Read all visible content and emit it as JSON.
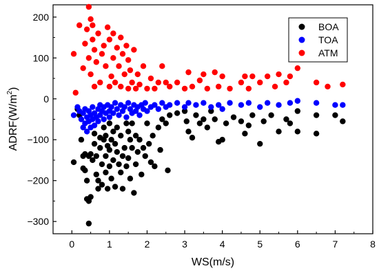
{
  "chart_data": {
    "type": "scatter",
    "xlabel": "WS(m/s)",
    "ylabel": "ADRF(W/m",
    "ylabel_superscript": "2",
    "ylabel_suffix": ")",
    "xlim": [
      -0.5,
      8
    ],
    "ylim": [
      -330,
      230
    ],
    "xticks": [
      0,
      1,
      2,
      3,
      4,
      5,
      6,
      7,
      8
    ],
    "yticks": [
      -300,
      -200,
      -100,
      0,
      100,
      200
    ],
    "grid": false,
    "legend_position": "top-right",
    "series": [
      {
        "name": "BOA",
        "color": "#000000",
        "points": [
          [
            0.05,
            -155
          ],
          [
            0.15,
            -25
          ],
          [
            0.2,
            -40
          ],
          [
            0.25,
            -100
          ],
          [
            0.3,
            -140
          ],
          [
            0.3,
            -170
          ],
          [
            0.35,
            -135
          ],
          [
            0.35,
            -175
          ],
          [
            0.4,
            -245
          ],
          [
            0.4,
            -200
          ],
          [
            0.45,
            -140
          ],
          [
            0.45,
            -250
          ],
          [
            0.45,
            -305
          ],
          [
            0.5,
            -240
          ],
          [
            0.5,
            -135
          ],
          [
            0.55,
            -150
          ],
          [
            0.6,
            -85
          ],
          [
            0.6,
            -110
          ],
          [
            0.65,
            -140
          ],
          [
            0.65,
            -185
          ],
          [
            0.7,
            -200
          ],
          [
            0.7,
            -220
          ],
          [
            0.75,
            -95
          ],
          [
            0.75,
            -120
          ],
          [
            0.8,
            -160
          ],
          [
            0.8,
            -210
          ],
          [
            0.85,
            -70
          ],
          [
            0.85,
            -100
          ],
          [
            0.9,
            -90
          ],
          [
            0.9,
            -140
          ],
          [
            0.9,
            -180
          ],
          [
            0.95,
            -115
          ],
          [
            0.95,
            -220
          ],
          [
            1.0,
            -60
          ],
          [
            1.0,
            -125
          ],
          [
            1.0,
            -165
          ],
          [
            1.05,
            -100
          ],
          [
            1.05,
            -195
          ],
          [
            1.1,
            -80
          ],
          [
            1.1,
            -150
          ],
          [
            1.15,
            -110
          ],
          [
            1.15,
            -215
          ],
          [
            1.2,
            -70
          ],
          [
            1.2,
            -130
          ],
          [
            1.25,
            -160
          ],
          [
            1.3,
            -90
          ],
          [
            1.3,
            -180
          ],
          [
            1.35,
            -140
          ],
          [
            1.35,
            -220
          ],
          [
            1.4,
            -120
          ],
          [
            1.45,
            -60
          ],
          [
            1.45,
            -165
          ],
          [
            1.5,
            -80
          ],
          [
            1.5,
            -145
          ],
          [
            1.55,
            -100
          ],
          [
            1.55,
            -195
          ],
          [
            1.6,
            -60
          ],
          [
            1.6,
            -120
          ],
          [
            1.65,
            -230
          ],
          [
            1.7,
            -90
          ],
          [
            1.7,
            -160
          ],
          [
            1.75,
            -130
          ],
          [
            1.8,
            -100
          ],
          [
            1.85,
            -185
          ],
          [
            1.9,
            -120
          ],
          [
            1.95,
            -140
          ],
          [
            2.0,
            -60
          ],
          [
            2.05,
            -110
          ],
          [
            2.1,
            -155
          ],
          [
            2.15,
            -90
          ],
          [
            2.2,
            -165
          ],
          [
            2.3,
            -70
          ],
          [
            2.35,
            -125
          ],
          [
            2.4,
            -50
          ],
          [
            2.5,
            -60
          ],
          [
            2.55,
            -175
          ],
          [
            2.6,
            -40
          ],
          [
            2.8,
            -35
          ],
          [
            3.0,
            -30
          ],
          [
            3.05,
            -55
          ],
          [
            3.1,
            -80
          ],
          [
            3.2,
            -95
          ],
          [
            3.3,
            -40
          ],
          [
            3.4,
            -60
          ],
          [
            3.5,
            -50
          ],
          [
            3.6,
            -70
          ],
          [
            3.7,
            -30
          ],
          [
            3.8,
            -50
          ],
          [
            3.9,
            -105
          ],
          [
            4.0,
            -100
          ],
          [
            4.1,
            -60
          ],
          [
            4.3,
            -45
          ],
          [
            4.5,
            -55
          ],
          [
            4.6,
            -85
          ],
          [
            4.7,
            -65
          ],
          [
            4.8,
            -40
          ],
          [
            5.0,
            -110
          ],
          [
            5.1,
            -55
          ],
          [
            5.3,
            -40
          ],
          [
            5.5,
            -80
          ],
          [
            5.7,
            -50
          ],
          [
            5.8,
            -60
          ],
          [
            6.0,
            -30
          ],
          [
            6.0,
            -80
          ],
          [
            6.5,
            -40
          ],
          [
            6.5,
            -85
          ],
          [
            7.0,
            -40
          ],
          [
            7.2,
            -55
          ]
        ]
      },
      {
        "name": "TOA",
        "color": "#0000ff",
        "points": [
          [
            0.05,
            -40
          ],
          [
            0.15,
            -20
          ],
          [
            0.2,
            -30
          ],
          [
            0.25,
            -50
          ],
          [
            0.3,
            -35
          ],
          [
            0.3,
            -70
          ],
          [
            0.35,
            -25
          ],
          [
            0.35,
            -60
          ],
          [
            0.4,
            -45
          ],
          [
            0.4,
            -80
          ],
          [
            0.45,
            -30
          ],
          [
            0.45,
            -55
          ],
          [
            0.5,
            -40
          ],
          [
            0.5,
            -70
          ],
          [
            0.55,
            -20
          ],
          [
            0.55,
            -50
          ],
          [
            0.6,
            -35
          ],
          [
            0.6,
            -65
          ],
          [
            0.65,
            -45
          ],
          [
            0.7,
            -25
          ],
          [
            0.7,
            -55
          ],
          [
            0.75,
            -15
          ],
          [
            0.75,
            -40
          ],
          [
            0.8,
            -30
          ],
          [
            0.85,
            -20
          ],
          [
            0.85,
            -50
          ],
          [
            0.9,
            -35
          ],
          [
            0.95,
            -15
          ],
          [
            1.0,
            -30
          ],
          [
            1.0,
            -45
          ],
          [
            1.05,
            -20
          ],
          [
            1.1,
            -35
          ],
          [
            1.15,
            -10
          ],
          [
            1.2,
            -25
          ],
          [
            1.25,
            -40
          ],
          [
            1.3,
            -15
          ],
          [
            1.35,
            -30
          ],
          [
            1.4,
            -20
          ],
          [
            1.45,
            -45
          ],
          [
            1.5,
            -10
          ],
          [
            1.55,
            -25
          ],
          [
            1.6,
            -35
          ],
          [
            1.65,
            -15
          ],
          [
            1.7,
            -30
          ],
          [
            1.75,
            -20
          ],
          [
            1.8,
            -40
          ],
          [
            1.85,
            -15
          ],
          [
            1.9,
            -25
          ],
          [
            1.95,
            -10
          ],
          [
            2.0,
            -30
          ],
          [
            2.1,
            -20
          ],
          [
            2.2,
            -15
          ],
          [
            2.3,
            -25
          ],
          [
            2.4,
            -10
          ],
          [
            2.5,
            -20
          ],
          [
            2.6,
            -15
          ],
          [
            2.8,
            -10
          ],
          [
            3.0,
            -20
          ],
          [
            3.1,
            -10
          ],
          [
            3.3,
            -15
          ],
          [
            3.5,
            -10
          ],
          [
            3.7,
            -20
          ],
          [
            3.9,
            -15
          ],
          [
            4.0,
            -25
          ],
          [
            4.2,
            -10
          ],
          [
            4.5,
            -15
          ],
          [
            4.7,
            -10
          ],
          [
            5.0,
            -20
          ],
          [
            5.2,
            -10
          ],
          [
            5.5,
            -15
          ],
          [
            5.8,
            -10
          ],
          [
            6.0,
            -5
          ],
          [
            6.5,
            -10
          ],
          [
            7.0,
            -15
          ],
          [
            7.2,
            -15
          ]
        ]
      },
      {
        "name": "ATM",
        "color": "#ff0000",
        "points": [
          [
            0.05,
            110
          ],
          [
            0.1,
            15
          ],
          [
            0.2,
            180
          ],
          [
            0.3,
            75
          ],
          [
            0.35,
            135
          ],
          [
            0.4,
            170
          ],
          [
            0.45,
            225
          ],
          [
            0.45,
            100
          ],
          [
            0.5,
            195
          ],
          [
            0.5,
            60
          ],
          [
            0.55,
            180
          ],
          [
            0.55,
            145
          ],
          [
            0.6,
            120
          ],
          [
            0.6,
            30
          ],
          [
            0.65,
            90
          ],
          [
            0.7,
            160
          ],
          [
            0.75,
            40
          ],
          [
            0.8,
            110
          ],
          [
            0.85,
            130
          ],
          [
            0.9,
            80
          ],
          [
            0.95,
            175
          ],
          [
            1.0,
            145
          ],
          [
            1.0,
            30
          ],
          [
            1.05,
            55
          ],
          [
            1.1,
            160
          ],
          [
            1.1,
            100
          ],
          [
            1.15,
            40
          ],
          [
            1.2,
            125
          ],
          [
            1.25,
            80
          ],
          [
            1.3,
            150
          ],
          [
            1.3,
            30
          ],
          [
            1.35,
            110
          ],
          [
            1.4,
            60
          ],
          [
            1.45,
            130
          ],
          [
            1.5,
            95
          ],
          [
            1.5,
            25
          ],
          [
            1.55,
            70
          ],
          [
            1.6,
            40
          ],
          [
            1.65,
            120
          ],
          [
            1.7,
            25
          ],
          [
            1.75,
            60
          ],
          [
            1.8,
            35
          ],
          [
            1.9,
            80
          ],
          [
            2.0,
            25
          ],
          [
            2.1,
            50
          ],
          [
            2.2,
            25
          ],
          [
            2.3,
            40
          ],
          [
            2.4,
            80
          ],
          [
            2.5,
            40
          ],
          [
            2.6,
            30
          ],
          [
            2.8,
            40
          ],
          [
            3.0,
            25
          ],
          [
            3.1,
            65
          ],
          [
            3.2,
            30
          ],
          [
            3.4,
            45
          ],
          [
            3.5,
            60
          ],
          [
            3.6,
            25
          ],
          [
            3.8,
            65
          ],
          [
            3.9,
            30
          ],
          [
            4.0,
            55
          ],
          [
            4.2,
            25
          ],
          [
            4.5,
            40
          ],
          [
            4.6,
            55
          ],
          [
            4.7,
            25
          ],
          [
            4.8,
            55
          ],
          [
            5.0,
            40
          ],
          [
            5.2,
            55
          ],
          [
            5.4,
            30
          ],
          [
            5.5,
            60
          ],
          [
            5.7,
            40
          ],
          [
            5.8,
            55
          ],
          [
            6.0,
            75
          ],
          [
            6.5,
            40
          ],
          [
            6.8,
            30
          ],
          [
            7.2,
            35
          ]
        ]
      }
    ]
  }
}
